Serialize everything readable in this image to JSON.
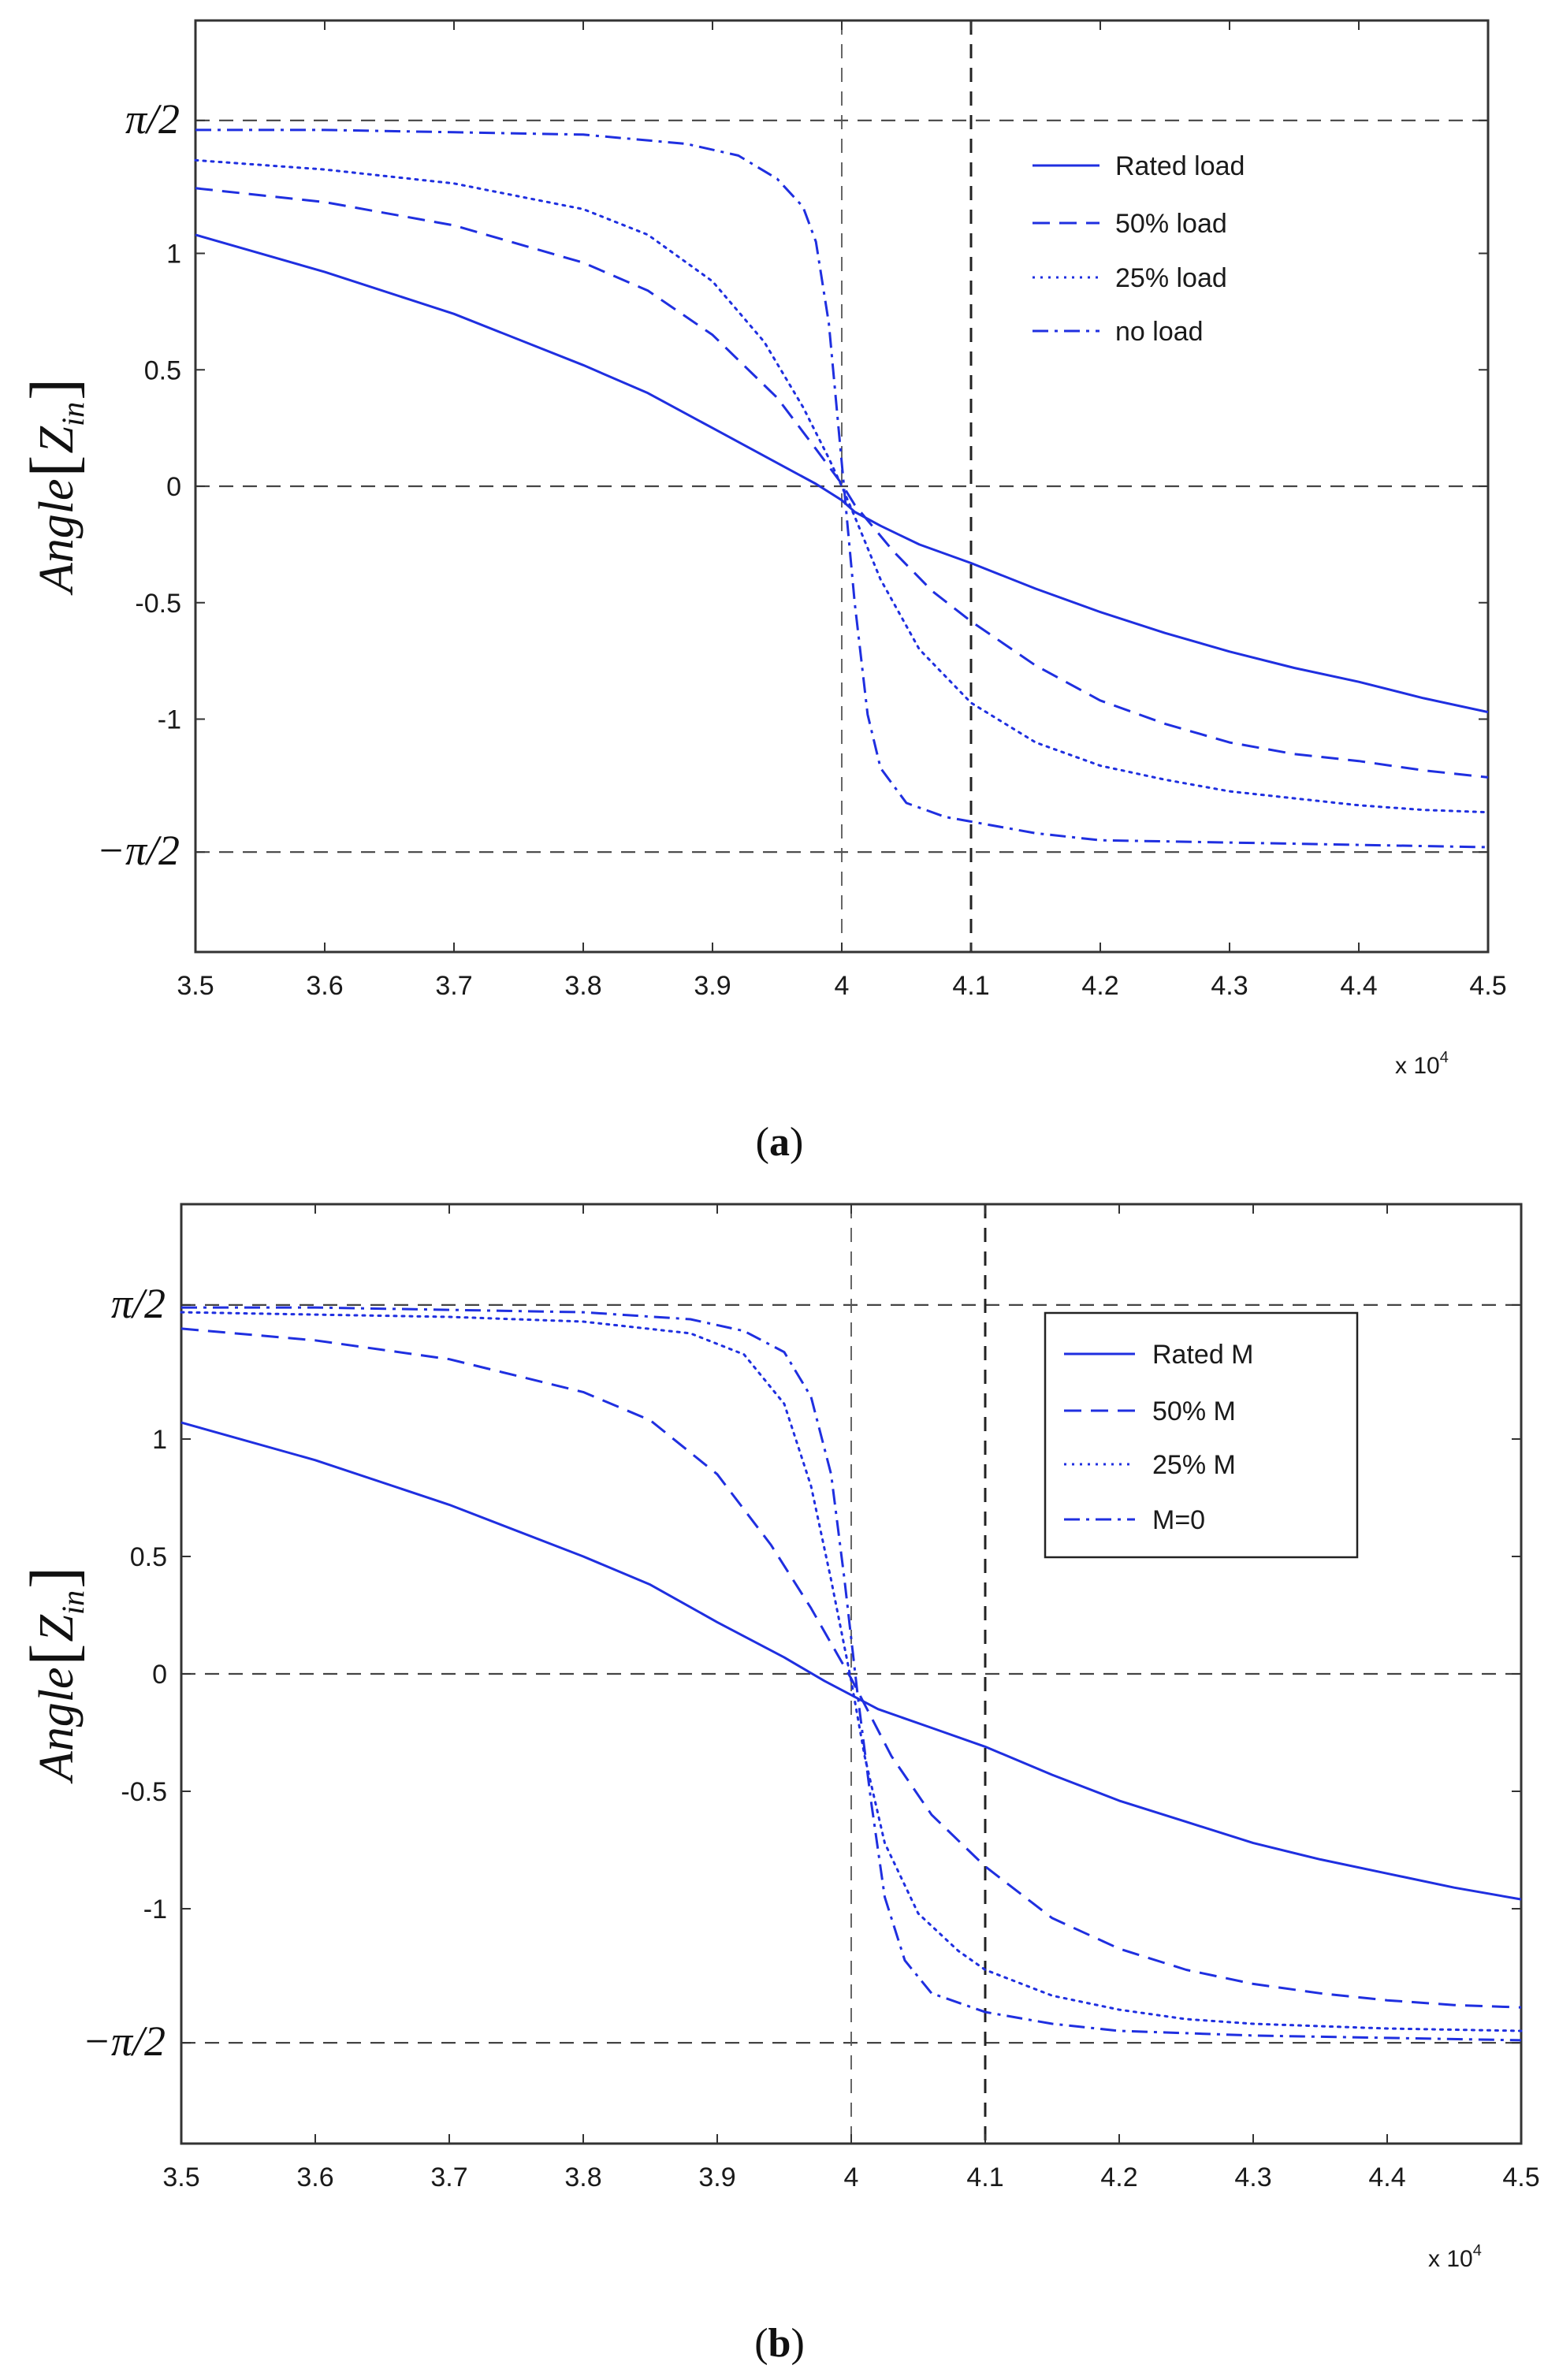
{
  "chart_data": [
    {
      "type": "line",
      "panel": "a",
      "caption": "(a)",
      "caption_letter": "a",
      "ylabel_main": "Angle",
      "ylabel_sub": "Z",
      "ylabel_subscript": "in",
      "xlim": [
        35000,
        45000
      ],
      "ylim": [
        -2.0,
        2.0
      ],
      "x_ticks": [
        35000,
        36000,
        37000,
        38000,
        39000,
        40000,
        41000,
        42000,
        43000,
        44000,
        45000
      ],
      "x_tick_labels": [
        "3.5",
        "3.6",
        "3.7",
        "3.8",
        "3.9",
        "4",
        "4.1",
        "4.2",
        "4.3",
        "4.4",
        "4.5"
      ],
      "x_scale_label": "x 10",
      "x_scale_exponent": "4",
      "y_ticks": [
        -1.5708,
        -1,
        -0.5,
        0,
        0.5,
        1,
        1.5708
      ],
      "y_tick_labels": [
        "−π/2",
        "-1",
        "-0.5",
        "0",
        "0.5",
        "1",
        "π/2"
      ],
      "reference_lines": {
        "horizontal": [
          1.5708,
          0,
          -1.5708
        ],
        "vertical": [
          40000,
          41000
        ]
      },
      "legend_position": "top-right",
      "legend_boxed": false,
      "series": [
        {
          "name": "Rated load",
          "style": "solid",
          "x": [
            35000,
            36000,
            37000,
            38000,
            38500,
            39000,
            39500,
            39800,
            40000,
            40100,
            40300,
            40600,
            41000,
            41500,
            42000,
            42500,
            43000,
            43500,
            44000,
            44500,
            45000
          ],
          "y": [
            1.08,
            0.92,
            0.74,
            0.52,
            0.4,
            0.25,
            0.1,
            0.01,
            -0.06,
            -0.11,
            -0.17,
            -0.25,
            -0.33,
            -0.44,
            -0.54,
            -0.63,
            -0.71,
            -0.78,
            -0.84,
            -0.91,
            -0.97
          ]
        },
        {
          "name": "50% load",
          "style": "dashed",
          "x": [
            35000,
            36000,
            37000,
            38000,
            38500,
            39000,
            39500,
            39800,
            40000,
            40100,
            40400,
            40700,
            41000,
            41500,
            42000,
            42500,
            43000,
            43500,
            44000,
            44500,
            45000
          ],
          "y": [
            1.28,
            1.22,
            1.12,
            0.96,
            0.84,
            0.65,
            0.38,
            0.16,
            0.01,
            -0.08,
            -0.28,
            -0.45,
            -0.58,
            -0.77,
            -0.92,
            -1.02,
            -1.1,
            -1.15,
            -1.18,
            -1.22,
            -1.25
          ]
        },
        {
          "name": "25% load",
          "style": "dotted",
          "x": [
            35000,
            36000,
            37000,
            38000,
            38500,
            39000,
            39400,
            39700,
            39900,
            40000,
            40100,
            40300,
            40600,
            41000,
            41500,
            42000,
            42500,
            43000,
            43500,
            44000,
            44500,
            45000
          ],
          "y": [
            1.4,
            1.36,
            1.3,
            1.19,
            1.08,
            0.88,
            0.62,
            0.34,
            0.12,
            0.0,
            -0.13,
            -0.4,
            -0.7,
            -0.93,
            -1.1,
            -1.2,
            -1.26,
            -1.31,
            -1.34,
            -1.37,
            -1.39,
            -1.4
          ]
        },
        {
          "name": "no load",
          "style": "dashdot",
          "x": [
            35000,
            36000,
            37000,
            38000,
            38800,
            39200,
            39500,
            39700,
            39800,
            39900,
            40000,
            40100,
            40200,
            40300,
            40500,
            40800,
            41000,
            41500,
            42000,
            43000,
            44000,
            45000
          ],
          "y": [
            1.53,
            1.53,
            1.52,
            1.51,
            1.47,
            1.42,
            1.32,
            1.2,
            1.05,
            0.7,
            0.1,
            -0.5,
            -0.98,
            -1.21,
            -1.36,
            -1.42,
            -1.44,
            -1.49,
            -1.52,
            -1.53,
            -1.54,
            -1.55
          ]
        }
      ]
    },
    {
      "type": "line",
      "panel": "b",
      "caption": "(b)",
      "caption_letter": "b",
      "ylabel_main": "Angle",
      "ylabel_sub": "Z",
      "ylabel_subscript": "in",
      "xlim": [
        35000,
        45000
      ],
      "ylim": [
        -2.0,
        2.0
      ],
      "x_ticks": [
        35000,
        36000,
        37000,
        38000,
        39000,
        40000,
        41000,
        42000,
        43000,
        44000,
        45000
      ],
      "x_tick_labels": [
        "3.5",
        "3.6",
        "3.7",
        "3.8",
        "3.9",
        "4",
        "4.1",
        "4.2",
        "4.3",
        "4.4",
        "4.5"
      ],
      "x_scale_label": "x 10",
      "x_scale_exponent": "4",
      "y_ticks": [
        -1.5708,
        -1,
        -0.5,
        0,
        0.5,
        1,
        1.5708
      ],
      "y_tick_labels": [
        "−π/2",
        "-1",
        "-0.5",
        "0",
        "0.5",
        "1",
        "π/2"
      ],
      "reference_lines": {
        "horizontal": [
          1.5708,
          0,
          -1.5708
        ],
        "vertical": [
          40000,
          41000
        ]
      },
      "legend_position": "top-right",
      "legend_boxed": true,
      "series": [
        {
          "name": "Rated M",
          "style": "solid",
          "x": [
            35000,
            36000,
            37000,
            38000,
            38500,
            39000,
            39500,
            39800,
            40000,
            40200,
            40600,
            41000,
            41500,
            42000,
            42500,
            43000,
            43500,
            44000,
            44500,
            45000
          ],
          "y": [
            1.07,
            0.91,
            0.72,
            0.5,
            0.38,
            0.22,
            0.07,
            -0.03,
            -0.09,
            -0.15,
            -0.23,
            -0.31,
            -0.43,
            -0.54,
            -0.63,
            -0.72,
            -0.79,
            -0.85,
            -0.91,
            -0.96
          ]
        },
        {
          "name": "50% M",
          "style": "dashed",
          "x": [
            35000,
            36000,
            37000,
            38000,
            38500,
            39000,
            39400,
            39700,
            39900,
            40000,
            40100,
            40300,
            40600,
            41000,
            41500,
            42000,
            42500,
            43000,
            43500,
            44000,
            44500,
            45000
          ],
          "y": [
            1.47,
            1.42,
            1.34,
            1.2,
            1.08,
            0.85,
            0.55,
            0.28,
            0.08,
            -0.02,
            -0.13,
            -0.35,
            -0.6,
            -0.82,
            -1.04,
            -1.17,
            -1.26,
            -1.32,
            -1.36,
            -1.39,
            -1.41,
            -1.42
          ]
        },
        {
          "name": "25% M",
          "style": "dotted",
          "x": [
            35000,
            36000,
            37000,
            38000,
            38800,
            39200,
            39500,
            39700,
            39850,
            40000,
            40100,
            40250,
            40500,
            40800,
            41000,
            41500,
            42000,
            42500,
            43000,
            44000,
            45000
          ],
          "y": [
            1.54,
            1.53,
            1.52,
            1.5,
            1.45,
            1.36,
            1.15,
            0.8,
            0.4,
            -0.03,
            -0.35,
            -0.72,
            -1.02,
            -1.18,
            -1.26,
            -1.37,
            -1.43,
            -1.47,
            -1.49,
            -1.51,
            -1.52
          ]
        },
        {
          "name": "M=0",
          "style": "dashdot",
          "x": [
            35000,
            36000,
            37000,
            38000,
            38800,
            39200,
            39500,
            39700,
            39850,
            39950,
            40050,
            40150,
            40250,
            40400,
            40600,
            41000,
            41500,
            42000,
            42500,
            43000,
            44000,
            45000
          ],
          "y": [
            1.56,
            1.56,
            1.55,
            1.54,
            1.51,
            1.46,
            1.37,
            1.18,
            0.85,
            0.4,
            -0.1,
            -0.55,
            -0.95,
            -1.22,
            -1.36,
            -1.44,
            -1.49,
            -1.52,
            -1.53,
            -1.54,
            -1.55,
            -1.56
          ]
        }
      ]
    }
  ]
}
